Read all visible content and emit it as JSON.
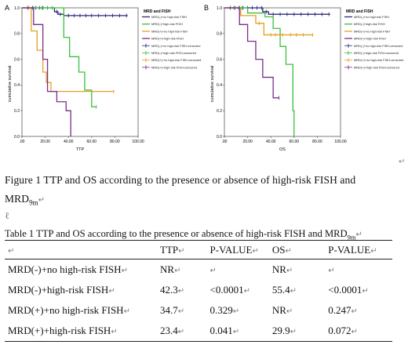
{
  "panels": [
    {
      "letter": "A",
      "xlabel": "TTP",
      "ylabel": "cumulative survival",
      "legend_title": "MRD and FISH",
      "legend_items": [
        "MRD(-)+no high-risk FISH",
        "MRD(-)+high-risk FISH",
        "MRD(+)+no high-risk FISH",
        "MRD(+)+high-risk FISH",
        "MRD(-)+no high-risk FISH-censored",
        "MRD(-)+high-risk FISH-censored",
        "MRD(+)+no high-risk FISH-censored",
        "MRD(+)+high-risk FISH-censored"
      ],
      "x_ticks": [
        ".00",
        "20.00",
        "40.00",
        "60.00",
        "80.00",
        "100.00"
      ],
      "y_ticks": [
        "0.0",
        "0.2",
        "0.4",
        "0.6",
        "0.8",
        "1.0"
      ]
    },
    {
      "letter": "B",
      "xlabel": "OS",
      "ylabel": "cumulative survival",
      "legend_title": "MRD and FISH",
      "legend_items": [
        "MRD(-)+no high-risk FISH",
        "MRD(-)+high-risk FISH",
        "MRD(+)+no high-risk FISH",
        "MRD(+)+high-risk FISH",
        "MRD(-)+no high-risk FISH-censored",
        "MRD(-)+high-risk FISH-censored",
        "MRD(+)+no high-risk FISH-censored",
        "MRD(+)+high-risk FISH-censored"
      ],
      "x_ticks": [
        ".00",
        "20.00",
        "40.00",
        "60.00",
        "80.00",
        "100.00"
      ],
      "y_ticks": [
        "0.0",
        "0.2",
        "0.4",
        "0.6",
        "0.8",
        "1.0"
      ]
    }
  ],
  "colors": {
    "mrdneg_nohr": "#2b2a7a",
    "mrdneg_hr": "#3cbf3c",
    "mrdpos_nohr": "#e6a020",
    "mrdpos_hr": "#7a2c8c"
  },
  "curves": [
    {
      "series": [
        {
          "color_key": "mrdneg_nohr",
          "steps": [
            [
              0,
              1.0
            ],
            [
              28,
              0.97
            ],
            [
              31,
              0.95
            ],
            [
              36,
              0.94
            ],
            [
              91,
              0.94
            ]
          ],
          "censor": [
            5,
            9,
            12,
            15,
            18,
            22,
            26,
            30,
            33,
            40,
            45,
            50,
            55,
            60,
            66,
            72,
            78,
            84,
            90
          ]
        },
        {
          "color_key": "mrdneg_hr",
          "steps": [
            [
              0,
              1.0
            ],
            [
              36,
              0.77
            ],
            [
              41,
              0.62
            ],
            [
              49,
              0.5
            ],
            [
              54,
              0.36
            ],
            [
              60,
              0.23
            ],
            [
              64,
              0.23
            ]
          ],
          "censor": [
            10,
            17,
            22,
            26,
            64
          ]
        },
        {
          "color_key": "mrdpos_nohr",
          "steps": [
            [
              0,
              1.0
            ],
            [
              8,
              0.82
            ],
            [
              13,
              0.67
            ],
            [
              18,
              0.5
            ],
            [
              21,
              0.42
            ],
            [
              25,
              0.35
            ],
            [
              79,
              0.35
            ]
          ],
          "censor": [
            6,
            79
          ]
        },
        {
          "color_key": "mrdpos_hr",
          "steps": [
            [
              0,
              1.0
            ],
            [
              10,
              0.87
            ],
            [
              18,
              0.6
            ],
            [
              22,
              0.35
            ],
            [
              30,
              0.27
            ],
            [
              38,
              0.2
            ],
            [
              42,
              0.0
            ]
          ],
          "censor": []
        }
      ]
    },
    {
      "series": [
        {
          "color_key": "mrdneg_nohr",
          "steps": [
            [
              0,
              1.0
            ],
            [
              33,
              0.97
            ],
            [
              38,
              0.95
            ],
            [
              91,
              0.95
            ]
          ],
          "censor": [
            5,
            9,
            13,
            16,
            20,
            24,
            28,
            32,
            36,
            42,
            48,
            54,
            60,
            66,
            72,
            78,
            84,
            90
          ]
        },
        {
          "color_key": "mrdneg_hr",
          "steps": [
            [
              0,
              1.0
            ],
            [
              20,
              0.96
            ],
            [
              35,
              0.93
            ],
            [
              42,
              0.84
            ],
            [
              48,
              0.7
            ],
            [
              53,
              0.56
            ],
            [
              59,
              0.2
            ],
            [
              60,
              0.0
            ]
          ],
          "censor": [
            8,
            12,
            15
          ]
        },
        {
          "color_key": "mrdpos_nohr",
          "steps": [
            [
              0,
              1.0
            ],
            [
              14,
              0.94
            ],
            [
              27,
              0.88
            ],
            [
              34,
              0.79
            ],
            [
              76,
              0.79
            ]
          ],
          "censor": [
            30,
            40,
            44,
            50,
            57,
            62,
            68,
            76
          ]
        },
        {
          "color_key": "mrdpos_hr",
          "steps": [
            [
              0,
              1.0
            ],
            [
              13,
              0.87
            ],
            [
              20,
              0.74
            ],
            [
              27,
              0.6
            ],
            [
              33,
              0.46
            ],
            [
              42,
              0.3
            ],
            [
              47,
              0.3
            ]
          ],
          "censor": [
            47
          ]
        }
      ]
    }
  ],
  "figure_caption": {
    "text": "Figure 1 TTP and OS according to the presence or absence of high-risk FISH and MRD",
    "sub": "9m",
    "mark": "↵"
  },
  "stray_mark": "ℓ",
  "return_mark": "↵",
  "table_caption": {
    "text": "Table 1 TTP and OS according to the presence or absence of high-risk FISH and MRD",
    "sub": "9m",
    "mark": "↵"
  },
  "table": {
    "cell_mark": "↵",
    "header": [
      "",
      "TTP",
      "P-VALUE",
      "OS",
      "P-VALUE"
    ],
    "rows": [
      [
        "MRD(-)+no high-risk FISH",
        "NR",
        "",
        "NR",
        ""
      ],
      [
        "MRD(-)+high-risk FISH",
        "42.3",
        "<0.0001",
        "55.4",
        "<0.0001"
      ],
      [
        "MRD(+)+no high-risk FISH",
        "34.7",
        "0.329",
        "NR",
        "0.247"
      ],
      [
        "MRD(+)+high-risk FISH",
        "23.4",
        "0.041",
        "29.9",
        "0.072"
      ]
    ]
  }
}
